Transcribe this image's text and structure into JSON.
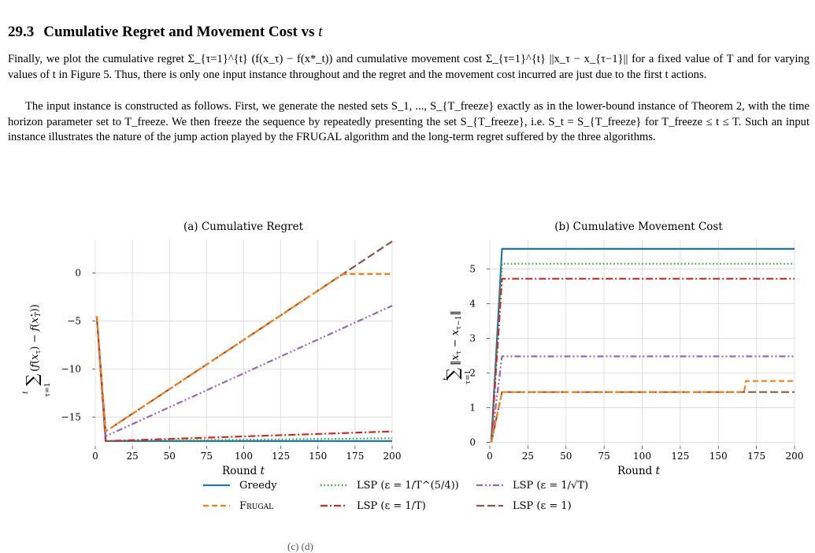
{
  "section": {
    "number": "29.3",
    "title_text": "Cumulative Regret and Movement Cost vs ",
    "title_var": "t"
  },
  "paragraph1": "Finally, we plot the cumulative regret Σ_{τ=1}^{t} (f(x_τ) − f(x*_t)) and cumulative movement cost Σ_{τ=1}^{t} ||x_τ − x_{τ−1}|| for a fixed value of T and for varying values of t in Figure 5. Thus, there is only one input instance throughout and the regret and the movement cost incurred are just due to the first t actions.",
  "paragraph2": "The input instance is constructed as follows. First, we generate the nested sets S_1, ..., S_{T_freeze} exactly as in the lower-bound instance of Theorem 2, with the time horizon parameter set to T_freeze. We then freeze the sequence by repeatedly presenting the set S_{T_freeze}, i.e. S_t = S_{T_freeze} for T_freeze ≤ t ≤ T. Such an input instance illustrates the nature of the jump action played by the FRUGAL algorithm and the long-term regret suffered by the three algorithms.",
  "footer_fragment": "(c)                    (d)",
  "figure": {
    "legend": [
      {
        "key": "greedy",
        "label": "Greedy",
        "color": "#1f77b4",
        "dash": "solid"
      },
      {
        "key": "frugal",
        "label": "Frugal",
        "color": "#ff7f0e",
        "dash": "dashed"
      },
      {
        "key": "lsp_t54",
        "label": "LSP (ε = 1/T^(5/4))",
        "color": "#2ca02c",
        "dash": "dotted"
      },
      {
        "key": "lsp_t",
        "label": "LSP (ε = 1/T)",
        "color": "#d62728",
        "dash": "dashdot"
      },
      {
        "key": "lsp_sqrt",
        "label": "LSP (ε = 1/√T)",
        "color": "#9467bd",
        "dash": "dashdotdot"
      },
      {
        "key": "lsp_1",
        "label": "LSP (ε = 1)",
        "color": "#8c564b",
        "dash": "longdash"
      }
    ]
  },
  "chart_data": [
    {
      "type": "line",
      "title": "(a) Cumulative Regret",
      "xlabel": "Round t",
      "ylabel": "Σ_{τ=1}^{t} (f(x_τ) − f(x*_T))",
      "xlim": [
        0,
        200
      ],
      "ylim": [
        -18,
        3.5
      ],
      "xticks": [
        0,
        25,
        50,
        75,
        100,
        125,
        150,
        175,
        200
      ],
      "yticks": [
        0,
        -5,
        -10,
        -15
      ],
      "ytick_labels": [
        "0",
        "−5",
        "−10",
        "−15"
      ],
      "grid": true,
      "series": [
        {
          "name": "Greedy",
          "x": [
            1,
            7,
            200
          ],
          "y": [
            -4.5,
            -17.5,
            -17.5
          ]
        },
        {
          "name": "LSP (ε = 1/T^(5/4))",
          "x": [
            1,
            7,
            200
          ],
          "y": [
            -4.5,
            -17.5,
            -17.2
          ]
        },
        {
          "name": "LSP (ε = 1/T)",
          "x": [
            1,
            7,
            200
          ],
          "y": [
            -4.5,
            -17.5,
            -16.5
          ]
        },
        {
          "name": "LSP (ε = 1/√T)",
          "x": [
            1,
            7,
            200
          ],
          "y": [
            -4.5,
            -17.0,
            -3.4
          ]
        },
        {
          "name": "LSP (ε = 1)",
          "x": [
            1,
            7,
            200
          ],
          "y": [
            -4.5,
            -16.5,
            3.3
          ]
        },
        {
          "name": "Frugal",
          "x": [
            1,
            7,
            167,
            200
          ],
          "y": [
            -4.5,
            -16.5,
            -0.1,
            -0.1
          ]
        }
      ]
    },
    {
      "type": "line",
      "title": "(b) Cumulative Movement Cost",
      "xlabel": "Round t",
      "ylabel": "Σ_{τ=1}^{t} ||x_τ − x_{τ−1}||",
      "xlim": [
        0,
        200
      ],
      "ylim": [
        -0.1,
        5.85
      ],
      "xticks": [
        0,
        25,
        50,
        75,
        100,
        125,
        150,
        175,
        200
      ],
      "yticks": [
        0,
        1,
        2,
        3,
        4,
        5
      ],
      "ytick_labels": [
        "0",
        "1",
        "2",
        "3",
        "4",
        "5"
      ],
      "grid": true,
      "series": [
        {
          "name": "Greedy",
          "x": [
            1,
            8,
            200
          ],
          "y": [
            0,
            5.58,
            5.58
          ]
        },
        {
          "name": "LSP (ε = 1/T^(5/4))",
          "x": [
            1,
            8,
            200
          ],
          "y": [
            0,
            5.15,
            5.15
          ]
        },
        {
          "name": "LSP (ε = 1/T)",
          "x": [
            1,
            8,
            200
          ],
          "y": [
            0,
            4.72,
            4.72
          ]
        },
        {
          "name": "LSP (ε = 1/√T)",
          "x": [
            1,
            8,
            200
          ],
          "y": [
            0,
            2.48,
            2.48
          ]
        },
        {
          "name": "LSP (ε = 1)",
          "x": [
            1,
            8,
            200
          ],
          "y": [
            0,
            1.45,
            1.45
          ]
        },
        {
          "name": "Frugal",
          "x": [
            1,
            8,
            167,
            168,
            200
          ],
          "y": [
            0,
            1.45,
            1.45,
            1.77,
            1.77
          ]
        }
      ]
    }
  ]
}
